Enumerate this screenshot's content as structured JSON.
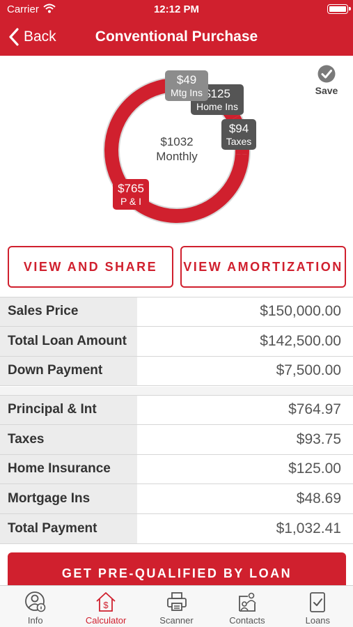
{
  "status_bar": {
    "carrier": "Carrier",
    "time": "12:12 PM"
  },
  "nav": {
    "back_label": "Back",
    "title": "Conventional Purchase"
  },
  "chart_data": {
    "type": "pie",
    "center_amount": "$1032",
    "center_label": "Monthly",
    "categories": [
      "P & I",
      "Taxes",
      "Home Ins",
      "Mtg Ins"
    ],
    "values": [
      765,
      94,
      125,
      49
    ],
    "value_labels": [
      "$765",
      "$94",
      "$125",
      "$49"
    ],
    "colors": [
      "#d0202e",
      "#555555",
      "#555555",
      "#8c8c8c"
    ]
  },
  "save_label": "Save",
  "buttons": {
    "view_share": "VIEW AND SHARE",
    "view_amortization": "VIEW AMORTIZATION",
    "prequal": "GET PRE-QUALIFIED BY LOAN"
  },
  "loan_table": [
    {
      "label": "Sales Price",
      "value": "$150,000.00"
    },
    {
      "label": "Total Loan Amount",
      "value": "$142,500.00"
    },
    {
      "label": "Down Payment",
      "value": "$7,500.00"
    }
  ],
  "payment_table": [
    {
      "label": "Principal & Int",
      "value": "$764.97"
    },
    {
      "label": "Taxes",
      "value": "$93.75"
    },
    {
      "label": "Home Insurance",
      "value": "$125.00"
    },
    {
      "label": "Mortgage Ins",
      "value": "$48.69"
    },
    {
      "label": "Total Payment",
      "value": "$1,032.41"
    }
  ],
  "tabs": [
    {
      "label": "Info",
      "icon": "info-person-icon",
      "active": false
    },
    {
      "label": "Calculator",
      "icon": "house-dollar-icon",
      "active": true
    },
    {
      "label": "Scanner",
      "icon": "printer-icon",
      "active": false
    },
    {
      "label": "Contacts",
      "icon": "contacts-icon",
      "active": false
    },
    {
      "label": "Loans",
      "icon": "clipboard-check-icon",
      "active": false
    }
  ],
  "colors": {
    "brand_red": "#d0202e",
    "dark_gray": "#555555"
  }
}
